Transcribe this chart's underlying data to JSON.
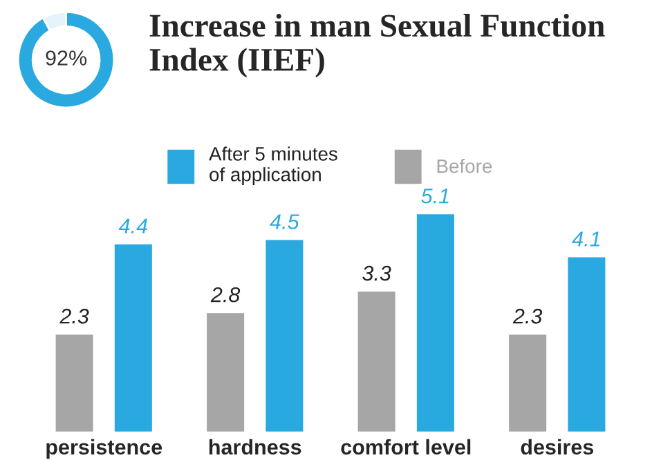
{
  "chart_data": [
    {
      "type": "donut",
      "categories": [
        null,
        null
      ],
      "values": [
        92,
        8
      ],
      "colors": [
        "#29a9e0",
        "#e6f3fa"
      ],
      "annotations": [
        "92%"
      ]
    },
    {
      "type": "bar",
      "title": "Increase in man Sexual Function Index (IIEF)",
      "categories": [
        "persistence",
        "hardness",
        "comfort level",
        "desires"
      ],
      "data_labels": true,
      "legend": "top",
      "series": [
        {
          "name": "Before",
          "color": "#a6a6a6",
          "values": [
            2.3,
            2.8,
            3.3,
            2.3
          ]
        },
        {
          "name": "After 5 minutes\nof application",
          "color": "#29a9e0",
          "values": [
            4.4,
            4.5,
            5.1,
            4.1
          ]
        }
      ]
    }
  ]
}
